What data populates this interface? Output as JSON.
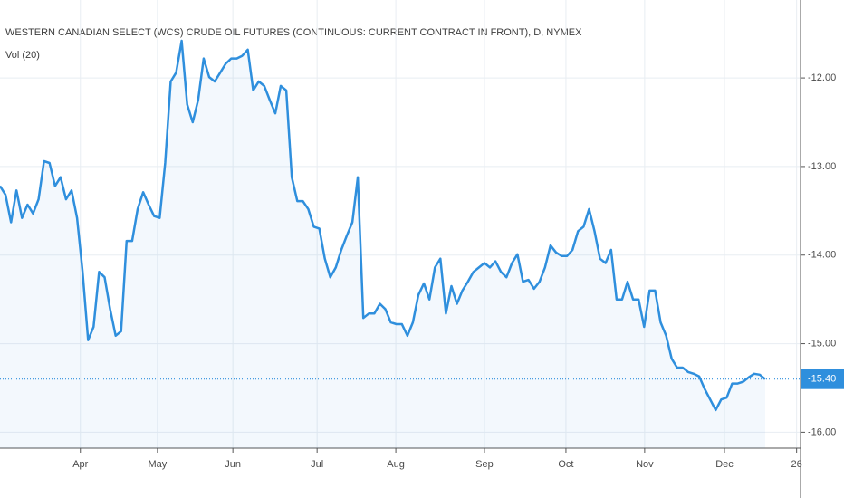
{
  "chart_data": {
    "type": "line",
    "title": "WESTERN CANADIAN SELECT (WCS) CRUDE OIL FUTURES (CONTINUOUS: CURRENT CONTRACT IN FRONT), D, NYMEX",
    "subtitle": "Vol (20)",
    "series": [
      {
        "name": "Vol (20)",
        "color": "#2f8fdd",
        "values": [
          -13.22,
          -13.32,
          -13.63,
          -13.27,
          -13.58,
          -13.43,
          -13.53,
          -13.37,
          -12.94,
          -12.96,
          -13.22,
          -13.12,
          -13.37,
          -13.27,
          -13.58,
          -14.19,
          -14.96,
          -14.81,
          -14.19,
          -14.25,
          -14.61,
          -14.91,
          -14.86,
          -13.84,
          -13.84,
          -13.48,
          -13.29,
          -13.43,
          -13.56,
          -13.58,
          -12.96,
          -12.04,
          -11.94,
          -11.58,
          -12.3,
          -12.5,
          -12.25,
          -11.78,
          -11.99,
          -12.04,
          -11.94,
          -11.84,
          -11.78,
          -11.78,
          -11.75,
          -11.68,
          -12.14,
          -12.04,
          -12.09,
          -12.25,
          -12.4,
          -12.09,
          -12.14,
          -13.12,
          -13.39,
          -13.39,
          -13.48,
          -13.68,
          -13.7,
          -14.04,
          -14.25,
          -14.14,
          -13.94,
          -13.78,
          -13.63,
          -13.12,
          -14.71,
          -14.66,
          -14.66,
          -14.55,
          -14.61,
          -14.76,
          -14.78,
          -14.78,
          -14.91,
          -14.76,
          -14.45,
          -14.32,
          -14.5,
          -14.14,
          -14.04,
          -14.66,
          -14.35,
          -14.55,
          -14.4,
          -14.3,
          -14.19,
          -14.14,
          -14.09,
          -14.14,
          -14.07,
          -14.19,
          -14.25,
          -14.09,
          -13.99,
          -14.3,
          -14.28,
          -14.38,
          -14.3,
          -14.14,
          -13.89,
          -13.97,
          -14.01,
          -14.01,
          -13.94,
          -13.73,
          -13.68,
          -13.48,
          -13.73,
          -14.04,
          -14.09,
          -13.94,
          -14.5,
          -14.5,
          -14.3,
          -14.5,
          -14.5,
          -14.81,
          -14.4,
          -14.4,
          -14.76,
          -14.91,
          -15.17,
          -15.27,
          -15.27,
          -15.32,
          -15.34,
          -15.37,
          -15.51,
          -15.63,
          -15.75,
          -15.63,
          -15.61,
          -15.45,
          -15.45,
          -15.43,
          -15.38,
          -15.34,
          -15.35,
          -15.4
        ]
      }
    ],
    "last_price": {
      "value": -15.4,
      "label": "-15.40"
    },
    "xlim": [
      0,
      139
    ],
    "xticks": [
      {
        "value": 14.6,
        "label": "Apr"
      },
      {
        "value": 28.6,
        "label": "May"
      },
      {
        "value": 42.3,
        "label": "Jun"
      },
      {
        "value": 57.6,
        "label": "Jul"
      },
      {
        "value": 71.9,
        "label": "Aug"
      },
      {
        "value": 88.0,
        "label": "Sep"
      },
      {
        "value": 102.8,
        "label": "Oct"
      },
      {
        "value": 117.1,
        "label": "Nov"
      },
      {
        "value": 131.6,
        "label": "Dec"
      },
      {
        "value": 144.7,
        "label": "26"
      }
    ],
    "ylim": [
      -16.18,
      -11.12
    ],
    "yticks": [
      {
        "value": -12,
        "label": "-12.00"
      },
      {
        "value": -13,
        "label": "-13.00"
      },
      {
        "value": -14,
        "label": "-14.00"
      },
      {
        "value": -15,
        "label": "-15.00"
      },
      {
        "value": -16,
        "label": "-16.00"
      }
    ],
    "grid": true
  }
}
